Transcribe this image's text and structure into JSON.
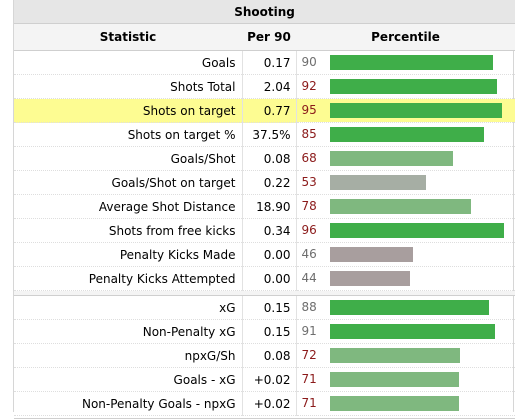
{
  "table": {
    "title": "Shooting",
    "headers": {
      "statistic": "Statistic",
      "per90": "Per 90",
      "percentile": "Percentile"
    },
    "groups": [
      [
        {
          "stat": "Goals",
          "per90": "0.17",
          "pct": 90,
          "red": false,
          "color": "#3fae49",
          "highlight": false
        },
        {
          "stat": "Shots Total",
          "per90": "2.04",
          "pct": 92,
          "red": true,
          "color": "#3fae49",
          "highlight": false
        },
        {
          "stat": "Shots on target",
          "per90": "0.77",
          "pct": 95,
          "red": true,
          "color": "#3fae49",
          "highlight": true
        },
        {
          "stat": "Shots on target %",
          "per90": "37.5%",
          "pct": 85,
          "red": true,
          "color": "#3fae49",
          "highlight": false
        },
        {
          "stat": "Goals/Shot",
          "per90": "0.08",
          "pct": 68,
          "red": true,
          "color": "#7fb87f",
          "highlight": false
        },
        {
          "stat": "Goals/Shot on target",
          "per90": "0.22",
          "pct": 53,
          "red": true,
          "color": "#a6aea4",
          "highlight": false
        },
        {
          "stat": "Average Shot Distance",
          "per90": "18.90",
          "pct": 78,
          "red": true,
          "color": "#7fb87f",
          "highlight": false
        },
        {
          "stat": "Shots from free kicks",
          "per90": "0.34",
          "pct": 96,
          "red": true,
          "color": "#3fae49",
          "highlight": false
        },
        {
          "stat": "Penalty Kicks Made",
          "per90": "0.00",
          "pct": 46,
          "red": false,
          "color": "#a89e9e",
          "highlight": false
        },
        {
          "stat": "Penalty Kicks Attempted",
          "per90": "0.00",
          "pct": 44,
          "red": false,
          "color": "#a89e9e",
          "highlight": false
        }
      ],
      [
        {
          "stat": "xG",
          "per90": "0.15",
          "pct": 88,
          "red": false,
          "color": "#3fae49",
          "highlight": false
        },
        {
          "stat": "Non-Penalty xG",
          "per90": "0.15",
          "pct": 91,
          "red": false,
          "color": "#3fae49",
          "highlight": false
        },
        {
          "stat": "npxG/Sh",
          "per90": "0.08",
          "pct": 72,
          "red": true,
          "color": "#7fb87f",
          "highlight": false
        },
        {
          "stat": "Goals - xG",
          "per90": "+0.02",
          "pct": 71,
          "red": true,
          "color": "#7fb87f",
          "highlight": false
        },
        {
          "stat": "Non-Penalty Goals - npxG",
          "per90": "+0.02",
          "pct": 71,
          "red": true,
          "color": "#7fb87f",
          "highlight": false
        }
      ]
    ]
  }
}
